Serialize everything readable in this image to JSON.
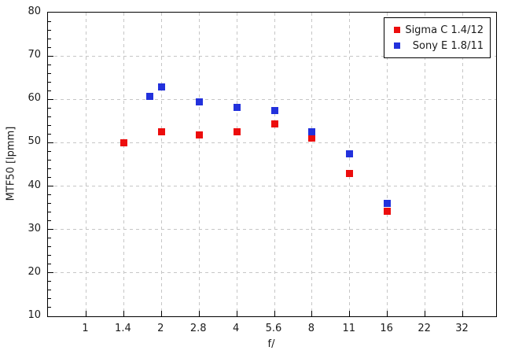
{
  "figure": {
    "background": "#ffffff",
    "border_color": "#000000",
    "grid_color": "#c6c6c6"
  },
  "chart_data": {
    "type": "scatter",
    "title": "",
    "xlabel": "f/",
    "ylabel": "MTF50 [lpmm]",
    "x_scale": "log-halfstops",
    "x_ticks": [
      1,
      1.4,
      2,
      2.8,
      4,
      5.6,
      8,
      11,
      16,
      22,
      32
    ],
    "x_tick_labels": [
      "1",
      "1.4",
      "2",
      "2.8",
      "4",
      "5.6",
      "8",
      "11",
      "16",
      "22",
      "32"
    ],
    "ylim": [
      10,
      80
    ],
    "y_major_step": 10,
    "y_minor_step": 2,
    "grid": true,
    "legend_position": "top-right",
    "series": [
      {
        "name": "Sigma C 1.4/12",
        "color": "#ec0d0d",
        "marker": "square",
        "points": [
          {
            "f": 1.4,
            "mtf50": 50.0
          },
          {
            "f": 2,
            "mtf50": 52.5
          },
          {
            "f": 2.8,
            "mtf50": 51.8
          },
          {
            "f": 4,
            "mtf50": 52.5
          },
          {
            "f": 5.6,
            "mtf50": 54.3
          },
          {
            "f": 8,
            "mtf50": 51.0
          },
          {
            "f": 11,
            "mtf50": 43.0
          },
          {
            "f": 16,
            "mtf50": 34.3
          }
        ]
      },
      {
        "name": "Sony E 1.8/11",
        "color": "#2231dc",
        "marker": "square",
        "points": [
          {
            "f": 1.8,
            "mtf50": 60.6
          },
          {
            "f": 2,
            "mtf50": 62.8
          },
          {
            "f": 2.8,
            "mtf50": 59.4
          },
          {
            "f": 4,
            "mtf50": 58.2
          },
          {
            "f": 5.6,
            "mtf50": 57.4
          },
          {
            "f": 8,
            "mtf50": 52.6
          },
          {
            "f": 11,
            "mtf50": 47.5
          },
          {
            "f": 16,
            "mtf50": 36.0
          }
        ]
      }
    ]
  }
}
